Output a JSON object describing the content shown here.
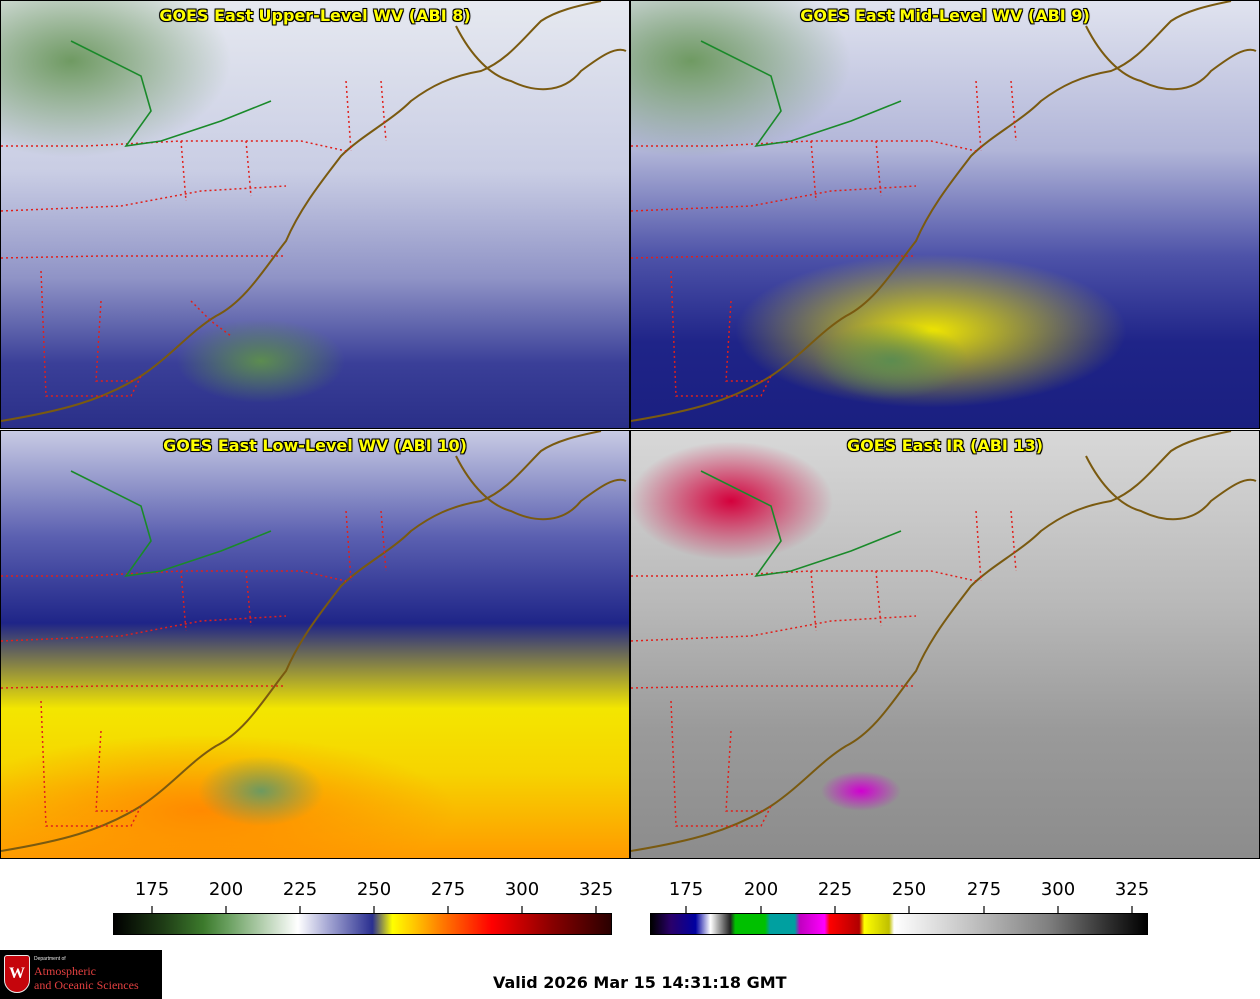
{
  "panels": [
    {
      "id": "upper-level-wv",
      "title": "GOES East Upper-Level WV (ABI 8)"
    },
    {
      "id": "mid-level-wv",
      "title": "GOES East Mid-Level WV (ABI 9)"
    },
    {
      "id": "low-level-wv",
      "title": "GOES East Low-Level WV (ABI 10)"
    },
    {
      "id": "ir",
      "title": "GOES East IR (ABI 13)"
    }
  ],
  "colorbars": {
    "wv": {
      "ticks": [
        "175",
        "200",
        "225",
        "250",
        "275",
        "300",
        "325"
      ]
    },
    "ir": {
      "ticks": [
        "175",
        "200",
        "225",
        "250",
        "275",
        "300",
        "325"
      ]
    }
  },
  "logo": {
    "crest_letter": "W",
    "dept": "Department of",
    "line1": "Atmospheric",
    "line2": "and Oceanic Sciences"
  },
  "footer": {
    "valid": "Valid 2026 Mar 15 14:31:18 GMT"
  },
  "colors": {
    "title": "#ffff00",
    "state_borders": "#e0201c",
    "coastline": "#7a5a10",
    "lake_outline": "#1a8a2a"
  }
}
